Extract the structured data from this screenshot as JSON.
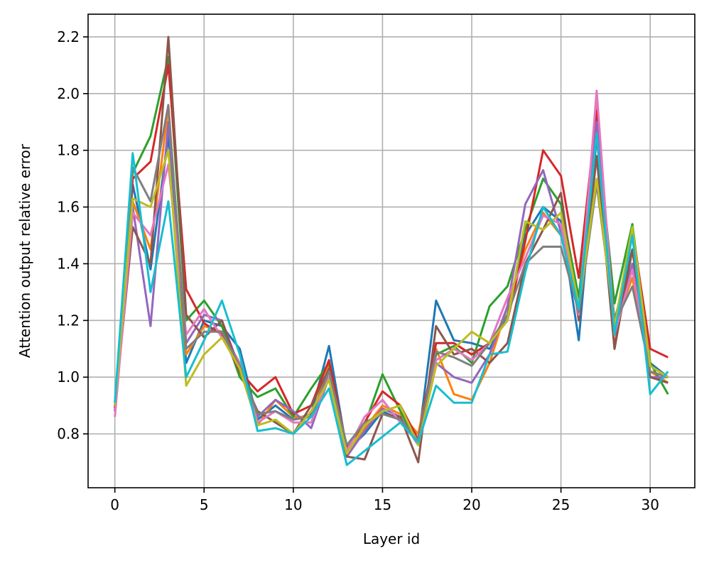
{
  "chart_data": {
    "type": "line",
    "title": "",
    "xlabel": "Layer id",
    "ylabel": "Attention output relative error",
    "xlim": [
      -1.5,
      32.5
    ],
    "ylim": [
      0.61,
      2.28
    ],
    "xticks": [
      0,
      5,
      10,
      15,
      20,
      25,
      30
    ],
    "yticks": [
      0.8,
      1.0,
      1.2,
      1.4,
      1.6,
      1.8,
      2.0,
      2.2
    ],
    "ytick_labels": [
      "0.8",
      "1.0",
      "1.2",
      "1.4",
      "1.6",
      "1.8",
      "2.0",
      "2.2"
    ],
    "grid": true,
    "legend": "none",
    "x": [
      0,
      1,
      2,
      3,
      4,
      5,
      6,
      7,
      8,
      9,
      10,
      11,
      12,
      13,
      14,
      15,
      16,
      17,
      18,
      19,
      20,
      21,
      22,
      23,
      24,
      25,
      26,
      27,
      28,
      29,
      30,
      31
    ],
    "colors": [
      "#1f77b4",
      "#ff7f0e",
      "#2ca02c",
      "#d62728",
      "#9467bd",
      "#8c564b",
      "#e377c2",
      "#7f7f7f",
      "#bcbd22",
      "#17becf"
    ],
    "series": [
      {
        "color": "#1f77b4",
        "values": [
          0.9,
          1.68,
          1.38,
          1.85,
          1.05,
          1.2,
          1.18,
          1.1,
          0.85,
          0.9,
          0.85,
          0.87,
          1.11,
          0.74,
          0.8,
          0.88,
          0.85,
          0.77,
          1.27,
          1.13,
          1.12,
          1.1,
          1.22,
          1.5,
          1.6,
          1.55,
          1.13,
          1.85,
          1.2,
          1.45,
          1.05,
          1.0
        ]
      },
      {
        "color": "#ff7f0e",
        "values": [
          0.89,
          1.62,
          1.45,
          1.95,
          1.08,
          1.18,
          1.16,
          1.05,
          0.83,
          0.92,
          0.86,
          0.86,
          1.04,
          0.72,
          0.82,
          0.9,
          0.87,
          0.8,
          1.1,
          0.94,
          0.92,
          1.05,
          1.25,
          1.45,
          1.58,
          1.5,
          1.25,
          1.96,
          1.18,
          1.35,
          1.02,
          0.98
        ]
      },
      {
        "color": "#2ca02c",
        "values": [
          0.91,
          1.72,
          1.85,
          2.13,
          1.2,
          1.27,
          1.18,
          1.0,
          0.93,
          0.96,
          0.86,
          0.96,
          1.05,
          0.73,
          0.83,
          1.01,
          0.88,
          0.76,
          1.08,
          1.11,
          1.05,
          1.25,
          1.32,
          1.52,
          1.7,
          1.61,
          1.28,
          1.88,
          1.26,
          1.54,
          1.05,
          0.94
        ]
      },
      {
        "color": "#d62728",
        "values": [
          0.88,
          1.7,
          1.76,
          2.1,
          1.31,
          1.19,
          1.15,
          1.02,
          0.95,
          1.0,
          0.87,
          0.9,
          1.06,
          0.75,
          0.84,
          0.95,
          0.9,
          0.78,
          1.12,
          1.12,
          1.08,
          1.12,
          1.2,
          1.48,
          1.8,
          1.71,
          1.35,
          1.94,
          1.1,
          1.52,
          1.1,
          1.07
        ]
      },
      {
        "color": "#9467bd",
        "values": [
          0.88,
          1.6,
          1.18,
          1.9,
          1.12,
          1.22,
          1.2,
          1.03,
          0.86,
          0.92,
          0.88,
          0.82,
          1.0,
          0.72,
          0.81,
          0.89,
          0.86,
          0.76,
          1.05,
          1.0,
          0.98,
          1.08,
          1.25,
          1.61,
          1.73,
          1.51,
          1.24,
          1.9,
          1.15,
          1.4,
          1.0,
          1.0
        ]
      },
      {
        "color": "#8c564b",
        "values": [
          0.89,
          1.53,
          1.4,
          2.2,
          1.22,
          1.14,
          1.2,
          1.02,
          0.88,
          0.84,
          0.8,
          0.9,
          1.03,
          0.72,
          0.71,
          0.87,
          0.86,
          0.7,
          1.18,
          1.08,
          1.1,
          1.05,
          1.12,
          1.4,
          1.52,
          1.65,
          1.2,
          1.78,
          1.1,
          1.45,
          1.0,
          0.98
        ]
      },
      {
        "color": "#e377c2",
        "values": [
          0.86,
          1.58,
          1.5,
          1.75,
          1.15,
          1.24,
          1.14,
          1.05,
          0.84,
          0.88,
          0.84,
          0.84,
          1.0,
          0.74,
          0.86,
          0.92,
          0.84,
          0.77,
          1.06,
          1.1,
          1.06,
          1.12,
          1.28,
          1.42,
          1.57,
          1.54,
          1.22,
          2.01,
          1.15,
          1.38,
          1.02,
          1.0
        ]
      },
      {
        "color": "#7f7f7f",
        "values": [
          0.9,
          1.74,
          1.62,
          1.96,
          1.1,
          1.16,
          1.16,
          1.04,
          0.87,
          0.88,
          0.85,
          0.86,
          1.02,
          0.76,
          0.84,
          0.87,
          0.85,
          0.78,
          1.09,
          1.07,
          1.04,
          1.12,
          1.22,
          1.4,
          1.46,
          1.46,
          1.23,
          1.68,
          1.19,
          1.32,
          1.02,
          1.0
        ]
      },
      {
        "color": "#bcbd22",
        "values": [
          0.9,
          1.63,
          1.6,
          1.8,
          0.97,
          1.08,
          1.14,
          1.03,
          0.83,
          0.85,
          0.8,
          0.88,
          0.99,
          0.73,
          0.83,
          0.88,
          0.9,
          0.76,
          1.04,
          1.1,
          1.16,
          1.12,
          1.2,
          1.55,
          1.52,
          1.58,
          1.25,
          1.7,
          1.18,
          1.53,
          1.04,
          1.0
        ]
      },
      {
        "color": "#17becf",
        "values": [
          0.91,
          1.79,
          1.3,
          1.62,
          1.0,
          1.13,
          1.27,
          1.08,
          0.81,
          0.82,
          0.8,
          0.86,
          0.96,
          0.69,
          0.74,
          0.79,
          0.84,
          0.77,
          0.97,
          0.91,
          0.91,
          1.08,
          1.09,
          1.37,
          1.6,
          1.5,
          1.24,
          1.86,
          1.15,
          1.5,
          0.94,
          1.02
        ]
      }
    ]
  }
}
